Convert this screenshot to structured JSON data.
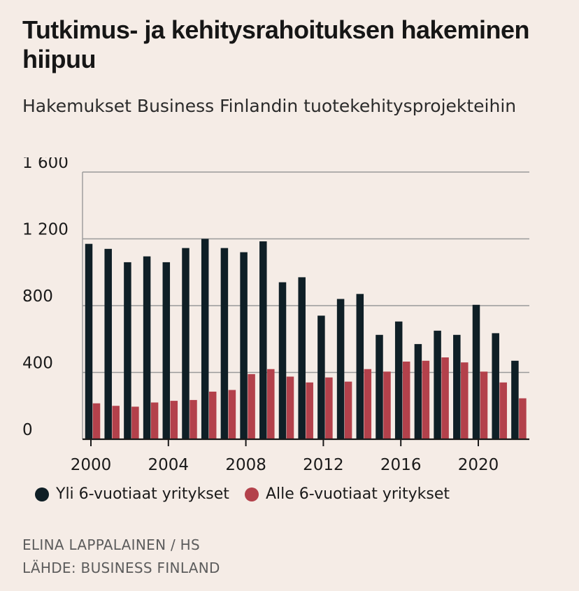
{
  "header": {
    "title": "Tutkimus- ja kehitysrahoituksen hakeminen hiipuu",
    "subtitle": "Hakemukset Business Finlandin tuotekehitysprojekteihin"
  },
  "credits": {
    "author": "ELINA LAPPALAINEN / HS",
    "source": "LÄHDE: BUSINESS FINLAND"
  },
  "colors": {
    "series1": "#0f1f26",
    "series2": "#b3414b",
    "grid": "#9a9a9a",
    "axis": "#1a1a1a"
  },
  "chart_data": {
    "type": "bar",
    "categories": [
      2000,
      2001,
      2002,
      2003,
      2004,
      2005,
      2006,
      2007,
      2008,
      2009,
      2010,
      2011,
      2012,
      2013,
      2014,
      2015,
      2016,
      2017,
      2018,
      2019,
      2020,
      2021,
      2022
    ],
    "x_tick_labels": [
      "2000",
      "2004",
      "2008",
      "2012",
      "2016",
      "2020"
    ],
    "y_ticks": [
      0,
      400,
      800,
      1200,
      1600
    ],
    "y_tick_labels": [
      "0",
      "400",
      "800",
      "1 200",
      "1 600"
    ],
    "ylim": [
      0,
      1600
    ],
    "grid": true,
    "legend_position": "bottom",
    "series": [
      {
        "name": "Yli 6-vuotiaat yritykset",
        "values": [
          1170,
          1140,
          1060,
          1095,
          1060,
          1145,
          1200,
          1145,
          1120,
          1185,
          940,
          970,
          740,
          840,
          870,
          625,
          705,
          570,
          650,
          625,
          805,
          635,
          470
        ]
      },
      {
        "name": "Alle 6-vuotiaat yritykset",
        "values": [
          215,
          200,
          195,
          220,
          230,
          235,
          285,
          295,
          390,
          420,
          375,
          340,
          370,
          345,
          420,
          405,
          465,
          470,
          490,
          460,
          405,
          340,
          245
        ]
      }
    ]
  }
}
